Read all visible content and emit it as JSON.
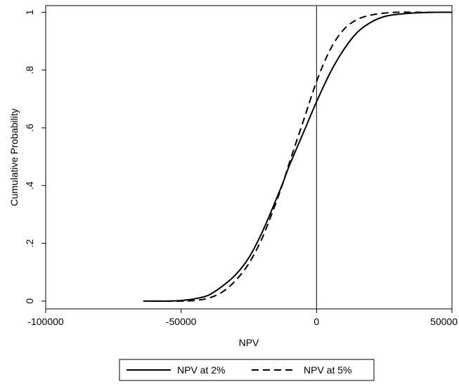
{
  "chart_data": {
    "type": "line",
    "title": "",
    "xlabel": "NPV",
    "ylabel": "Cumulative Probability",
    "xlim": [
      -100000,
      50000
    ],
    "ylim": [
      0,
      1
    ],
    "x_ticks": [
      -100000,
      -50000,
      0,
      50000
    ],
    "x_tick_labels": [
      "-100000",
      "-50000",
      "0",
      "50000"
    ],
    "y_ticks": [
      0,
      0.2,
      0.4,
      0.6,
      0.8,
      1
    ],
    "y_tick_labels": [
      "0",
      ".2",
      ".4",
      ".6",
      ".8",
      "1"
    ],
    "grid": false,
    "reference_line_x": 0,
    "legend_position": "bottom",
    "series": [
      {
        "name": "NPV at 2%",
        "style": "solid",
        "color": "#000000",
        "x": [
          -64000,
          -55000,
          -50000,
          -45000,
          -40000,
          -35000,
          -30000,
          -25000,
          -20000,
          -15000,
          -12000,
          -10000,
          -5000,
          0,
          5000,
          10000,
          15000,
          20000,
          25000,
          30000,
          35000,
          40000,
          45000,
          50000
        ],
        "y": [
          0.0,
          0.0,
          0.002,
          0.008,
          0.02,
          0.05,
          0.09,
          0.15,
          0.24,
          0.35,
          0.42,
          0.47,
          0.58,
          0.69,
          0.79,
          0.87,
          0.93,
          0.965,
          0.985,
          0.993,
          0.997,
          0.999,
          1.0,
          1.0
        ]
      },
      {
        "name": "NPV at 5%",
        "style": "dashed",
        "color": "#000000",
        "x": [
          -60000,
          -50000,
          -45000,
          -40000,
          -35000,
          -30000,
          -25000,
          -20000,
          -15000,
          -12000,
          -10000,
          -5000,
          0,
          5000,
          10000,
          15000,
          20000,
          25000,
          30000,
          35000,
          40000,
          45000,
          50000
        ],
        "y": [
          0.0,
          0.0,
          0.002,
          0.01,
          0.03,
          0.07,
          0.13,
          0.22,
          0.34,
          0.42,
          0.48,
          0.62,
          0.76,
          0.87,
          0.94,
          0.975,
          0.99,
          0.997,
          1.0,
          1.0,
          1.0,
          1.0,
          1.0
        ]
      }
    ]
  }
}
